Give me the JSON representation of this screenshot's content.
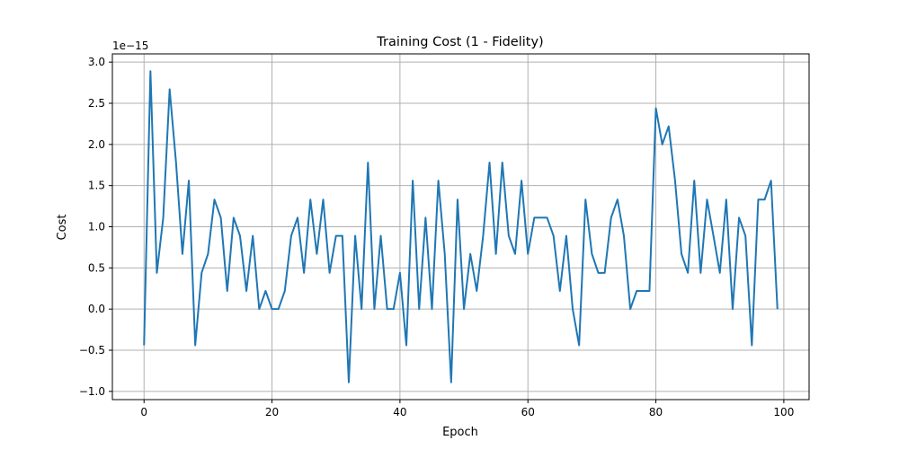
{
  "chart_data": {
    "type": "line",
    "title": "Training Cost (1 - Fidelity)",
    "xlabel": "Epoch",
    "ylabel": "Cost",
    "y_offset_label": "1e−15",
    "xlim": [
      -4.95,
      103.95
    ],
    "ylim": [
      -1.1,
      3.1
    ],
    "x_ticks": [
      0,
      20,
      40,
      60,
      80,
      100
    ],
    "x_tick_labels": [
      "0",
      "20",
      "40",
      "60",
      "80",
      "100"
    ],
    "y_ticks": [
      -1.0,
      -0.5,
      0.0,
      0.5,
      1.0,
      1.5,
      2.0,
      2.5,
      3.0
    ],
    "y_tick_labels": [
      "−1.0",
      "−0.5",
      "0.0",
      "0.5",
      "1.0",
      "1.5",
      "2.0",
      "2.5",
      "3.0"
    ],
    "grid": true,
    "series": [
      {
        "color": "#1f77b4",
        "x": [
          0,
          1,
          2,
          3,
          4,
          5,
          6,
          7,
          8,
          9,
          10,
          11,
          12,
          13,
          14,
          15,
          16,
          17,
          18,
          19,
          20,
          21,
          22,
          23,
          24,
          25,
          26,
          27,
          28,
          29,
          30,
          31,
          32,
          33,
          34,
          35,
          36,
          37,
          38,
          39,
          40,
          41,
          42,
          43,
          44,
          45,
          46,
          47,
          48,
          49,
          50,
          51,
          52,
          53,
          54,
          55,
          56,
          57,
          58,
          59,
          60,
          61,
          62,
          63,
          64,
          65,
          66,
          67,
          68,
          69,
          70,
          71,
          72,
          73,
          74,
          75,
          76,
          77,
          78,
          79,
          80,
          81,
          82,
          83,
          84,
          85,
          86,
          87,
          88,
          89,
          90,
          91,
          92,
          93,
          94,
          95,
          96,
          97,
          98,
          99
        ],
        "values": [
          -0.44,
          2.89,
          0.44,
          1.11,
          2.67,
          1.78,
          0.67,
          1.56,
          -0.44,
          0.44,
          0.67,
          1.33,
          1.11,
          0.22,
          1.11,
          0.89,
          0.22,
          0.89,
          0.0,
          0.22,
          0.0,
          0.0,
          0.22,
          0.89,
          1.11,
          0.44,
          1.33,
          0.67,
          1.33,
          0.44,
          0.89,
          0.89,
          -0.89,
          0.89,
          0.0,
          1.78,
          0.0,
          0.89,
          0.0,
          0.0,
          0.44,
          -0.44,
          1.56,
          0.0,
          1.11,
          0.0,
          1.56,
          0.67,
          -0.89,
          1.33,
          0.0,
          0.67,
          0.22,
          0.89,
          1.78,
          0.67,
          1.78,
          0.89,
          0.67,
          1.56,
          0.67,
          1.11,
          1.11,
          1.11,
          0.89,
          0.22,
          0.89,
          0.0,
          -0.44,
          1.33,
          0.67,
          0.44,
          0.44,
          1.11,
          1.33,
          0.89,
          0.0,
          0.22,
          0.22,
          0.22,
          2.44,
          2.0,
          2.22,
          1.56,
          0.67,
          0.44,
          1.56,
          0.44,
          1.33,
          0.89,
          0.44,
          1.33,
          0.0,
          1.11,
          0.89,
          -0.44,
          1.33,
          1.33,
          1.56,
          0.0
        ]
      }
    ]
  }
}
